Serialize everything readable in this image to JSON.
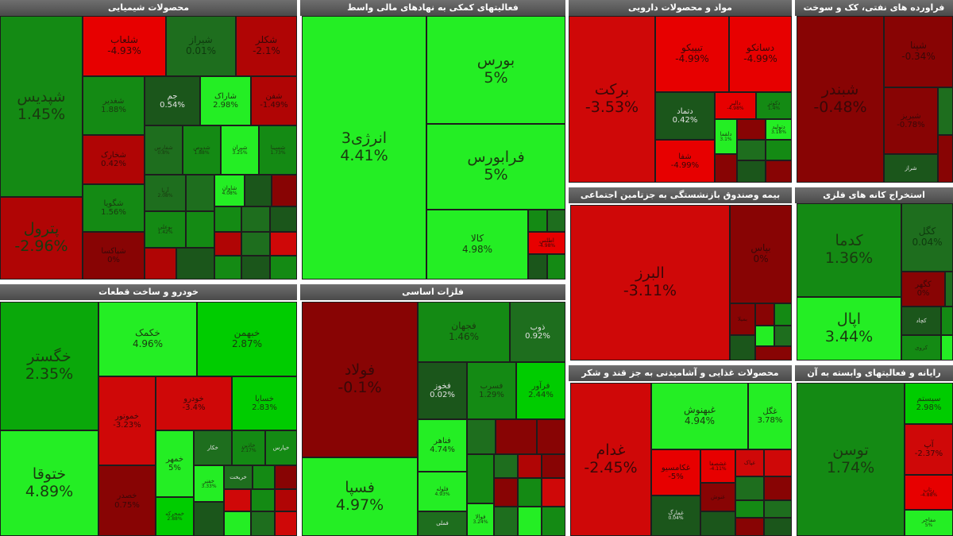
{
  "colors": {
    "strong_green": "#24ee24",
    "light_green": "#00cc00",
    "green": "#0aa80a",
    "mid_green": "#148a14",
    "dark_green": "#1e6e1e",
    "deep_green": "#1b561b",
    "bright_red": "#e70000",
    "red": "#cf0808",
    "mid_red": "#b00505",
    "dark_red": "#880404",
    "header_bg": "#565656"
  },
  "panels": [
    {
      "title": "محصولات شیمیایی",
      "cells": [
        {
          "name": "شپدیس",
          "pct": "1.45%"
        },
        {
          "name": "پترول",
          "pct": "-2.96%"
        },
        {
          "name": "شلعاب",
          "pct": "-4.93%"
        },
        {
          "name": "شیراز",
          "pct": "0.01%"
        },
        {
          "name": "شکلر",
          "pct": "-2.1%"
        },
        {
          "name": "شغدیر",
          "pct": "1.88%"
        },
        {
          "name": "جم",
          "pct": "0.54%"
        },
        {
          "name": "شاراک",
          "pct": "2.98%"
        },
        {
          "name": "شفن",
          "pct": "-1.49%"
        },
        {
          "name": "شخارک",
          "pct": "0.42%"
        },
        {
          "name": "شگویا",
          "pct": "1.56%"
        },
        {
          "name": "شپاکسا",
          "pct": "0%"
        },
        {
          "name": "شفارس",
          "pct": "0.8%"
        },
        {
          "name": "شدوص",
          "pct": "1.88%"
        },
        {
          "name": "شیران",
          "pct": "3.25%"
        },
        {
          "name": "شسینا",
          "pct": "1.73%"
        },
        {
          "name": "آریا",
          "pct": "2.08%"
        },
        {
          "name": "بوعلی",
          "pct": "1.42%"
        },
        {
          "name": "شاوان",
          "pct": "4.08%"
        }
      ]
    },
    {
      "title": "فعالیتهای کمکی به نهادهای مالی واسط",
      "cells": [
        {
          "name": "انرژی3",
          "pct": "4.41%"
        },
        {
          "name": "بورس",
          "pct": "5%"
        },
        {
          "name": "فرابورس",
          "pct": "5%"
        },
        {
          "name": "کالا",
          "pct": "4.98%"
        },
        {
          "name": "اطلس",
          "pct": "-4.98%"
        }
      ]
    },
    {
      "title": "مواد و محصولات دارویی",
      "cells": [
        {
          "name": "برکت",
          "pct": "-3.53%"
        },
        {
          "name": "تیپیکو",
          "pct": "-4.99%"
        },
        {
          "name": "دسانکو",
          "pct": "-4.99%"
        },
        {
          "name": "دتماد",
          "pct": "0.42%"
        },
        {
          "name": "شفا",
          "pct": "-4.99%"
        },
        {
          "name": "دالبر",
          "pct": "-4.98%"
        },
        {
          "name": "دکوثر",
          "pct": "1.4%"
        },
        {
          "name": "دلقما",
          "pct": "3.1%"
        },
        {
          "name": "دتولید",
          "pct": "3.18%"
        },
        {
          "name": "دلر",
          "pct": "3.18%"
        }
      ]
    },
    {
      "title": "فراورده های نفتی، کک و سوخت",
      "cells": [
        {
          "name": "شپنا",
          "pct": "-0.34%"
        },
        {
          "name": "شبندر",
          "pct": "-0.48%"
        },
        {
          "name": "شبریز",
          "pct": "-0.78%"
        },
        {
          "name": "شراز",
          "pct": ""
        }
      ]
    },
    {
      "title": "بیمه وصندوق بازنشستگی به جزتامین اجتماعی",
      "cells": [
        {
          "name": "البرز",
          "pct": "-3.11%"
        },
        {
          "name": "بپاس",
          "pct": "0%"
        },
        {
          "name": "بمیلا",
          "pct": ""
        }
      ]
    },
    {
      "title": "استخراج کانه های فلزی",
      "cells": [
        {
          "name": "کدما",
          "pct": "1.36%"
        },
        {
          "name": "کگل",
          "pct": "0.04%"
        },
        {
          "name": "اپال",
          "pct": "3.44%"
        },
        {
          "name": "کگهر",
          "pct": "0%"
        },
        {
          "name": "کچاد",
          "pct": ""
        },
        {
          "name": "کروی",
          "pct": ""
        }
      ]
    },
    {
      "title": "خودرو و ساخت قطعات",
      "cells": [
        {
          "name": "خگستر",
          "pct": "2.35%"
        },
        {
          "name": "خکمک",
          "pct": "4.96%"
        },
        {
          "name": "خبهمن",
          "pct": "2.87%"
        },
        {
          "name": "خساپا",
          "pct": "2.83%"
        },
        {
          "name": "خودرو",
          "pct": "-3.4%"
        },
        {
          "name": "خموتور",
          "pct": "-3.23%"
        },
        {
          "name": "ختوقا",
          "pct": "4.89%"
        },
        {
          "name": "خمهر",
          "pct": "5%"
        },
        {
          "name": "خصدر",
          "pct": "0.75%"
        },
        {
          "name": "خمحرکه",
          "pct": "2.88%"
        },
        {
          "name": "خفنر",
          "pct": "3.33%"
        },
        {
          "name": "خاذین",
          "pct": "2.17%"
        },
        {
          "name": "خکار",
          "pct": ""
        },
        {
          "name": "خپارس",
          "pct": ""
        },
        {
          "name": "خریخت",
          "pct": ""
        }
      ]
    },
    {
      "title": "فلزات اساسی",
      "cells": [
        {
          "name": "فولاد",
          "pct": "-0.1%"
        },
        {
          "name": "فسپا",
          "pct": "4.97%"
        },
        {
          "name": "فجهان",
          "pct": "1.46%"
        },
        {
          "name": "ذوب",
          "pct": "0.92%"
        },
        {
          "name": "فخوز",
          "pct": "0.02%"
        },
        {
          "name": "فسرب",
          "pct": "1.29%"
        },
        {
          "name": "فرآور",
          "pct": "2.44%"
        },
        {
          "name": "فناهر",
          "pct": "4.74%"
        },
        {
          "name": "فلوله",
          "pct": "4.93%"
        },
        {
          "name": "فوالا",
          "pct": "3.24%"
        },
        {
          "name": "فملی",
          "pct": ""
        }
      ]
    },
    {
      "title": "محصولات غذایی و آشامیدنی به جز قند و شکر",
      "cells": [
        {
          "name": "غدام",
          "pct": "-2.45%"
        },
        {
          "name": "غبهنوش",
          "pct": "4.94%"
        },
        {
          "name": "غگل",
          "pct": "3.78%"
        },
        {
          "name": "غکامسیو",
          "pct": "-5%"
        },
        {
          "name": "غشصفا",
          "pct": "-4.11%"
        },
        {
          "name": "غمارگ",
          "pct": "0.04%"
        },
        {
          "name": "غنوش",
          "pct": ""
        },
        {
          "name": "غپاک",
          "pct": ""
        }
      ]
    },
    {
      "title": "رایانه و فعالیتهای وابسته به آن",
      "cells": [
        {
          "name": "توسن",
          "pct": "1.74%"
        },
        {
          "name": "سیستم",
          "pct": "2.98%"
        },
        {
          "name": "آپ",
          "pct": "-2.37%"
        },
        {
          "name": "رتاپ",
          "pct": "-4.88%"
        },
        {
          "name": "مفاخر",
          "pct": "5%"
        }
      ]
    }
  ]
}
